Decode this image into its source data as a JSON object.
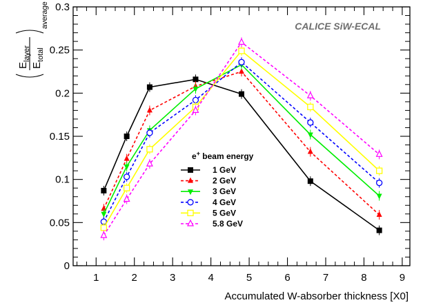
{
  "chart_data": {
    "type": "line",
    "annotation": "CALICE SiW-ECAL",
    "xlabel": "Accumulated W-absorber thickness [X0]",
    "ylabel_num": "E",
    "ylabel_num_sub": "layer",
    "ylabel_den": "E",
    "ylabel_den_sub": "total",
    "ylabel_suffix": "average",
    "xlim": [
      0.4,
      9.2
    ],
    "ylim": [
      0,
      0.3
    ],
    "x_ticks": [
      1,
      2,
      3,
      4,
      5,
      6,
      7,
      8,
      9
    ],
    "y_ticks": [
      0,
      0.05,
      0.1,
      0.15,
      0.2,
      0.25,
      0.3
    ],
    "y_tick_labels": [
      "0",
      "0.05",
      "0.1",
      "0.15",
      "0.2",
      "0.25",
      "0.3"
    ],
    "x_tick_labels": [
      "1",
      "2",
      "3",
      "4",
      "5",
      "6",
      "7",
      "8",
      "9"
    ],
    "legend_title_prefix": "e",
    "legend_title_sup": "+",
    "legend_title_suffix": " beam energy",
    "legend_position": "center-left",
    "grid": false,
    "x": [
      1.2,
      1.8,
      2.4,
      3.6,
      4.8,
      6.6,
      8.4
    ],
    "series": [
      {
        "name": "1 GeV",
        "color": "#000000",
        "dash": "solid",
        "marker": "square-filled",
        "values": [
          0.087,
          0.15,
          0.207,
          0.216,
          0.199,
          0.098,
          0.041
        ]
      },
      {
        "name": "2 GeV",
        "color": "#ff0000",
        "dash": "dashed",
        "marker": "triangle-filled",
        "values": [
          0.066,
          0.124,
          0.18,
          0.208,
          0.225,
          0.132,
          0.059
        ]
      },
      {
        "name": "3 GeV",
        "color": "#00ee00",
        "dash": "solid",
        "marker": "triangle-down-filled",
        "values": [
          0.06,
          0.115,
          0.157,
          0.205,
          0.233,
          0.152,
          0.081
        ]
      },
      {
        "name": "4 GeV",
        "color": "#0000ff",
        "dash": "dashed",
        "marker": "circle-open",
        "values": [
          0.051,
          0.103,
          0.154,
          0.192,
          0.236,
          0.166,
          0.096
        ]
      },
      {
        "name": "5 GeV",
        "color": "#ffff00",
        "dash": "solid",
        "marker": "square-open",
        "values": [
          0.044,
          0.09,
          0.135,
          0.184,
          0.249,
          0.184,
          0.11
        ]
      },
      {
        "name": "5.8 GeV",
        "color": "#ff00ff",
        "dash": "dashed",
        "marker": "triangle-open",
        "values": [
          0.035,
          0.077,
          0.118,
          0.18,
          0.259,
          0.197,
          0.129
        ]
      }
    ]
  }
}
